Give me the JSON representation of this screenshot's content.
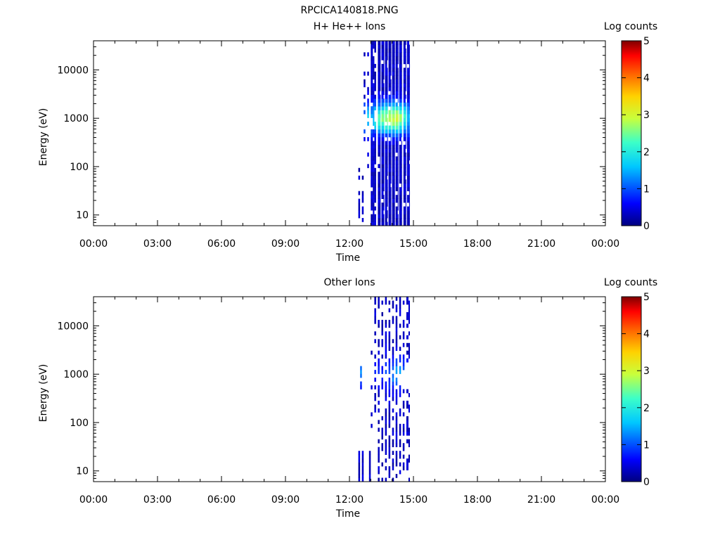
{
  "page": {
    "title": "RPCICA140818.PNG"
  },
  "chart_data": [
    {
      "type": "heatmap",
      "title": "H+ He++ Ions",
      "xlabel": "Time",
      "ylabel": "Energy (eV)",
      "y_scale": "log",
      "xlim_hours": [
        0,
        24
      ],
      "ylim": [
        6,
        40000
      ],
      "x_ticks": [
        "00:00",
        "03:00",
        "06:00",
        "09:00",
        "12:00",
        "15:00",
        "18:00",
        "21:00",
        "00:00"
      ],
      "y_ticks": [
        {
          "value": 10,
          "label": "10"
        },
        {
          "value": 100,
          "label": "100"
        },
        {
          "value": 1000,
          "label": "1000"
        },
        {
          "value": 10000,
          "label": "10000"
        }
      ],
      "colorbar": {
        "label": "Log counts",
        "min": 0,
        "max": 5,
        "ticks": [
          "0",
          "1",
          "2",
          "3",
          "4",
          "5"
        ]
      },
      "observed_interval": {
        "start": "12:25",
        "end": "14:50"
      },
      "spectra": [
        {
          "t_start": "12:25",
          "t_end": "12:30",
          "e_min": 8,
          "e_max": 90,
          "peak_e": 0,
          "peak_level": 0.2,
          "fill": 0.6
        },
        {
          "t_start": "12:35",
          "t_end": "12:40",
          "e_min": 8,
          "e_max": 60,
          "peak_e": 0,
          "peak_level": 0.2,
          "fill": 0.5
        },
        {
          "t_start": "12:40",
          "t_end": "12:45",
          "e_min": 300,
          "e_max": 30000,
          "peak_e": 1000,
          "peak_level": 1.0,
          "fill": 0.3
        },
        {
          "t_start": "12:50",
          "t_end": "12:55",
          "e_min": 100,
          "e_max": 20000,
          "peak_e": 1000,
          "peak_level": 1.4,
          "fill": 0.4
        },
        {
          "t_start": "13:00",
          "t_end": "13:10",
          "e_min": 6,
          "e_max": 40000,
          "peak_e": 1000,
          "peak_level": 1.2,
          "fill": 0.9
        },
        {
          "t_start": "13:10",
          "t_end": "13:15",
          "e_min": 6,
          "e_max": 40000,
          "peak_e": 1000,
          "peak_level": 1.7,
          "fill": 0.85
        },
        {
          "t_start": "13:20",
          "t_end": "13:28",
          "e_min": 6,
          "e_max": 40000,
          "peak_e": 1000,
          "peak_level": 2.0,
          "fill": 0.95
        },
        {
          "t_start": "13:30",
          "t_end": "13:38",
          "e_min": 6,
          "e_max": 40000,
          "peak_e": 1000,
          "peak_level": 2.2,
          "fill": 0.95
        },
        {
          "t_start": "13:40",
          "t_end": "13:48",
          "e_min": 6,
          "e_max": 40000,
          "peak_e": 1000,
          "peak_level": 2.4,
          "fill": 0.95
        },
        {
          "t_start": "13:50",
          "t_end": "13:58",
          "e_min": 6,
          "e_max": 40000,
          "peak_e": 1000,
          "peak_level": 2.6,
          "fill": 0.95
        },
        {
          "t_start": "14:00",
          "t_end": "14:08",
          "e_min": 6,
          "e_max": 40000,
          "peak_e": 1000,
          "peak_level": 2.6,
          "fill": 0.95
        },
        {
          "t_start": "14:10",
          "t_end": "14:18",
          "e_min": 6,
          "e_max": 40000,
          "peak_e": 1000,
          "peak_level": 2.7,
          "fill": 0.95
        },
        {
          "t_start": "14:20",
          "t_end": "14:28",
          "e_min": 6,
          "e_max": 40000,
          "peak_e": 1000,
          "peak_level": 2.3,
          "fill": 0.95
        },
        {
          "t_start": "14:32",
          "t_end": "14:40",
          "e_min": 6,
          "e_max": 40000,
          "peak_e": 1000,
          "peak_level": 1.8,
          "fill": 0.9
        },
        {
          "t_start": "14:42",
          "t_end": "14:50",
          "e_min": 6,
          "e_max": 40000,
          "peak_e": 1000,
          "peak_level": 1.2,
          "fill": 0.9
        }
      ]
    },
    {
      "type": "heatmap",
      "title": "Other Ions",
      "xlabel": "Time",
      "ylabel": "Energy (eV)",
      "y_scale": "log",
      "xlim_hours": [
        0,
        24
      ],
      "ylim": [
        6,
        40000
      ],
      "x_ticks": [
        "00:00",
        "03:00",
        "06:00",
        "09:00",
        "12:00",
        "15:00",
        "18:00",
        "21:00",
        "00:00"
      ],
      "y_ticks": [
        {
          "value": 10,
          "label": "10"
        },
        {
          "value": 100,
          "label": "100"
        },
        {
          "value": 1000,
          "label": "1000"
        },
        {
          "value": 10000,
          "label": "10000"
        }
      ],
      "colorbar": {
        "label": "Log counts",
        "min": 0,
        "max": 5,
        "ticks": [
          "0",
          "1",
          "2",
          "3",
          "4",
          "5"
        ]
      },
      "observed_interval": {
        "start": "12:25",
        "end": "14:50"
      },
      "spectra": [
        {
          "t_start": "12:25",
          "t_end": "12:30",
          "e_min": 6,
          "e_max": 25,
          "peak_e": 0,
          "peak_level": 0.2,
          "fill": 0.9
        },
        {
          "t_start": "12:35",
          "t_end": "12:40",
          "e_min": 6,
          "e_max": 25,
          "peak_e": 0,
          "peak_level": 0.2,
          "fill": 0.9
        },
        {
          "t_start": "12:30",
          "t_end": "12:35",
          "e_min": 400,
          "e_max": 2000,
          "peak_e": 1000,
          "peak_level": 0.9,
          "fill": 0.3
        },
        {
          "t_start": "12:55",
          "t_end": "13:00",
          "e_min": 6,
          "e_max": 25,
          "peak_e": 0,
          "peak_level": 0.2,
          "fill": 0.9
        },
        {
          "t_start": "13:00",
          "t_end": "13:05",
          "e_min": 60,
          "e_max": 20000,
          "peak_e": 0,
          "peak_level": 0.2,
          "fill": 0.2
        },
        {
          "t_start": "13:10",
          "t_end": "13:15",
          "e_min": 100,
          "e_max": 40000,
          "peak_e": 1000,
          "peak_level": 0.4,
          "fill": 0.35
        },
        {
          "t_start": "13:20",
          "t_end": "13:25",
          "e_min": 6,
          "e_max": 40000,
          "peak_e": 1000,
          "peak_level": 0.5,
          "fill": 0.45
        },
        {
          "t_start": "13:30",
          "t_end": "13:35",
          "e_min": 6,
          "e_max": 40000,
          "peak_e": 1000,
          "peak_level": 0.5,
          "fill": 0.5
        },
        {
          "t_start": "13:40",
          "t_end": "13:45",
          "e_min": 6,
          "e_max": 40000,
          "peak_e": 1000,
          "peak_level": 0.6,
          "fill": 0.55
        },
        {
          "t_start": "13:50",
          "t_end": "13:55",
          "e_min": 6,
          "e_max": 40000,
          "peak_e": 1000,
          "peak_level": 0.7,
          "fill": 0.6
        },
        {
          "t_start": "14:00",
          "t_end": "14:05",
          "e_min": 6,
          "e_max": 40000,
          "peak_e": 1000,
          "peak_level": 0.9,
          "fill": 0.6
        },
        {
          "t_start": "14:10",
          "t_end": "14:15",
          "e_min": 6,
          "e_max": 40000,
          "peak_e": 1000,
          "peak_level": 1.1,
          "fill": 0.65
        },
        {
          "t_start": "14:20",
          "t_end": "14:25",
          "e_min": 6,
          "e_max": 40000,
          "peak_e": 1000,
          "peak_level": 1.0,
          "fill": 0.6
        },
        {
          "t_start": "14:30",
          "t_end": "14:35",
          "e_min": 6,
          "e_max": 40000,
          "peak_e": 1000,
          "peak_level": 0.8,
          "fill": 0.55
        },
        {
          "t_start": "14:40",
          "t_end": "14:50",
          "e_min": 6,
          "e_max": 40000,
          "peak_e": 1000,
          "peak_level": 0.5,
          "fill": 0.5
        }
      ]
    }
  ]
}
